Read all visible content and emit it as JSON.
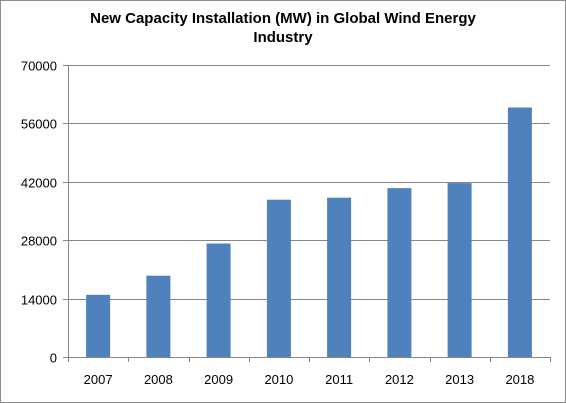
{
  "chart_data": {
    "type": "bar",
    "title_lines": [
      "New Capacity Installation (MW) in Global Wind Energy",
      "Industry"
    ],
    "categories": [
      "2007",
      "2008",
      "2009",
      "2010",
      "2011",
      "2012",
      "2013",
      "2018"
    ],
    "values": [
      14900,
      19500,
      27200,
      37700,
      38200,
      40500,
      41700,
      59800
    ],
    "ylim": [
      0,
      70000
    ],
    "yticks": [
      0,
      14000,
      28000,
      42000,
      56000,
      70000
    ],
    "xlabel": "",
    "ylabel": "",
    "grid": true,
    "legend": "none",
    "bar_color": "#4f81bd",
    "grid_color": "#868686",
    "axis_color": "#868686"
  }
}
